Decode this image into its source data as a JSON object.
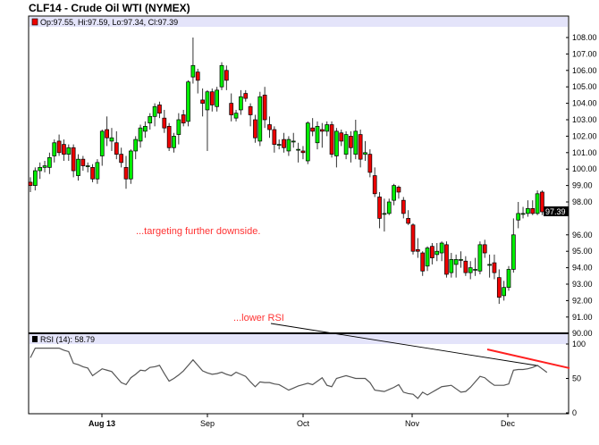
{
  "title": "CLF14 - Crude Oil WTI (NYMEX)",
  "price_info": "Op:97.55, Hi:97.59, Lo:97.34, Cl:97.39",
  "rsi_info": "RSI (14): 58.79",
  "last_price_label": "97.39",
  "annotations": {
    "price": "...targeting further downside.",
    "rsi": "...lower RSI"
  },
  "colors": {
    "up": "#00ee00",
    "down": "#ee0000",
    "info_bar": "#e4e4fa",
    "annotation": "#ff3333",
    "rsi_line": "#555555"
  },
  "chart_data": [
    {
      "type": "candlestick",
      "title": "CLF14 - Crude Oil WTI (NYMEX)",
      "ylim": [
        90,
        108.5
      ],
      "y_ticks": [
        "108.00",
        "107.00",
        "106.00",
        "105.00",
        "104.00",
        "103.00",
        "102.00",
        "101.00",
        "100.00",
        "99.00",
        "98.00",
        "96.00",
        "95.00",
        "94.00",
        "93.00",
        "92.00",
        "91.00",
        "90.00"
      ],
      "x_ticks": [
        "Aug 13",
        "Sep",
        "Oct",
        "Nov",
        "Dec"
      ],
      "grid": false,
      "ohlc": [
        [
          99.2,
          99.5,
          98.6,
          99.0
        ],
        [
          99.0,
          100.1,
          98.7,
          99.9
        ],
        [
          99.9,
          100.4,
          99.4,
          100.1
        ],
        [
          100.1,
          100.5,
          99.8,
          100.2
        ],
        [
          100.1,
          101.0,
          99.7,
          100.7
        ],
        [
          100.8,
          101.8,
          100.4,
          101.6
        ],
        [
          101.7,
          102.1,
          100.8,
          101.0
        ],
        [
          101.5,
          101.8,
          100.5,
          100.9
        ],
        [
          100.9,
          101.5,
          100.5,
          101.3
        ],
        [
          101.3,
          101.5,
          99.5,
          99.9
        ],
        [
          99.6,
          100.9,
          99.3,
          100.6
        ],
        [
          100.6,
          100.8,
          99.9,
          100.2
        ],
        [
          100.2,
          100.4,
          99.8,
          100.2
        ],
        [
          100.1,
          100.3,
          99.2,
          99.4
        ],
        [
          99.4,
          100.6,
          99.1,
          100.4
        ],
        [
          100.8,
          102.4,
          100.2,
          102.3
        ],
        [
          102.4,
          103.2,
          101.4,
          101.9
        ],
        [
          101.7,
          102.5,
          101.1,
          101.9
        ],
        [
          101.6,
          102.3,
          100.6,
          100.9
        ],
        [
          100.9,
          101.3,
          100.1,
          100.4
        ],
        [
          100.1,
          100.8,
          98.8,
          99.4
        ],
        [
          99.4,
          101.2,
          99.1,
          101.1
        ],
        [
          101.1,
          102.0,
          100.6,
          101.8
        ],
        [
          101.7,
          102.7,
          101.3,
          102.5
        ],
        [
          102.3,
          102.9,
          101.9,
          102.6
        ],
        [
          102.8,
          103.4,
          102.4,
          103.2
        ],
        [
          103.2,
          104.0,
          102.6,
          103.8
        ],
        [
          103.9,
          104.1,
          103.1,
          103.4
        ],
        [
          103.1,
          103.6,
          102.2,
          102.5
        ],
        [
          102.6,
          102.8,
          101.1,
          101.3
        ],
        [
          101.3,
          102.2,
          101.0,
          102.0
        ],
        [
          102.1,
          103.4,
          101.5,
          103.0
        ],
        [
          103.3,
          103.6,
          102.6,
          102.8
        ],
        [
          102.9,
          105.4,
          102.6,
          105.3
        ],
        [
          105.6,
          108.0,
          105.2,
          106.3
        ],
        [
          105.9,
          106.1,
          104.6,
          105.4
        ],
        [
          104.2,
          104.9,
          103.2,
          104.0
        ],
        [
          103.6,
          104.8,
          101.1,
          104.7
        ],
        [
          104.7,
          104.9,
          103.5,
          103.9
        ],
        [
          103.8,
          105.0,
          103.5,
          104.8
        ],
        [
          105.0,
          106.5,
          104.8,
          106.3
        ],
        [
          106.0,
          106.3,
          104.8,
          105.4
        ],
        [
          104.0,
          104.6,
          102.9,
          103.3
        ],
        [
          103.1,
          103.6,
          102.9,
          103.4
        ],
        [
          103.6,
          104.8,
          103.3,
          104.4
        ],
        [
          104.6,
          104.8,
          104.1,
          104.3
        ],
        [
          103.8,
          104.0,
          102.6,
          103.3
        ],
        [
          103.0,
          103.3,
          101.6,
          101.9
        ],
        [
          101.7,
          104.7,
          101.4,
          104.4
        ],
        [
          104.5,
          105.0,
          102.5,
          103.0
        ],
        [
          102.7,
          103.2,
          101.9,
          102.4
        ],
        [
          102.4,
          102.6,
          101.0,
          101.5
        ],
        [
          101.5,
          101.8,
          101.2,
          101.5
        ],
        [
          101.8,
          102.2,
          101.0,
          101.3
        ],
        [
          101.1,
          102.0,
          100.8,
          101.8
        ],
        [
          101.7,
          102.2,
          101.3,
          101.7
        ],
        [
          101.2,
          101.6,
          100.4,
          101.2
        ],
        [
          101.1,
          101.4,
          100.6,
          101.0
        ],
        [
          100.5,
          102.9,
          100.3,
          102.8
        ],
        [
          102.5,
          103.1,
          102.0,
          102.3
        ],
        [
          101.6,
          102.9,
          101.2,
          102.6
        ],
        [
          102.4,
          102.8,
          101.3,
          102.3
        ],
        [
          102.3,
          102.9,
          102.0,
          102.7
        ],
        [
          102.7,
          102.9,
          100.7,
          100.9
        ],
        [
          100.8,
          102.5,
          100.1,
          102.3
        ],
        [
          102.2,
          102.4,
          101.4,
          101.7
        ],
        [
          100.9,
          102.3,
          100.6,
          102.1
        ],
        [
          102.0,
          102.3,
          100.4,
          101.3
        ],
        [
          100.9,
          103.0,
          100.6,
          102.3
        ],
        [
          102.1,
          102.4,
          100.1,
          100.6
        ],
        [
          100.9,
          101.7,
          100.5,
          101.0
        ],
        [
          100.9,
          101.2,
          99.5,
          99.8
        ],
        [
          99.6,
          100.1,
          98.3,
          98.5
        ],
        [
          98.3,
          98.6,
          96.4,
          97.0
        ],
        [
          97.3,
          98.2,
          96.2,
          97.3
        ],
        [
          97.3,
          98.2,
          97.2,
          98.0
        ],
        [
          98.1,
          99.1,
          97.8,
          99.0
        ],
        [
          98.9,
          99.0,
          98.2,
          98.6
        ],
        [
          98.1,
          98.3,
          97.0,
          97.3
        ],
        [
          97.0,
          97.5,
          96.6,
          96.7
        ],
        [
          96.6,
          96.7,
          94.8,
          95.0
        ],
        [
          95.1,
          95.8,
          94.6,
          95.0
        ],
        [
          94.9,
          95.0,
          93.5,
          93.8
        ],
        [
          94.1,
          95.3,
          93.8,
          95.2
        ],
        [
          95.3,
          95.5,
          94.2,
          94.6
        ],
        [
          94.8,
          95.5,
          94.4,
          95.0
        ],
        [
          94.9,
          95.6,
          94.4,
          95.5
        ],
        [
          95.4,
          95.6,
          93.4,
          93.6
        ],
        [
          93.7,
          94.9,
          93.4,
          94.5
        ],
        [
          94.2,
          94.8,
          93.4,
          94.5
        ],
        [
          94.5,
          95.0,
          94.0,
          94.5
        ],
        [
          94.4,
          94.7,
          93.5,
          93.7
        ],
        [
          93.7,
          94.4,
          93.3,
          94.0
        ],
        [
          93.9,
          94.6,
          93.5,
          93.9
        ],
        [
          93.8,
          95.6,
          93.6,
          95.4
        ],
        [
          95.4,
          95.7,
          94.6,
          94.9
        ],
        [
          94.2,
          94.8,
          93.4,
          94.2
        ],
        [
          94.3,
          94.8,
          93.3,
          93.7
        ],
        [
          93.4,
          93.9,
          91.8,
          92.2
        ],
        [
          92.3,
          93.2,
          92.0,
          92.8
        ],
        [
          92.8,
          94.1,
          92.6,
          93.9
        ],
        [
          93.9,
          97.0,
          93.7,
          96.0
        ],
        [
          96.9,
          98.0,
          96.4,
          97.3
        ],
        [
          97.3,
          97.7,
          97.0,
          97.3
        ],
        [
          97.3,
          98.1,
          97.1,
          97.6
        ],
        [
          97.6,
          98.1,
          97.2,
          97.3
        ],
        [
          97.3,
          98.7,
          97.2,
          98.5
        ],
        [
          98.6,
          98.7,
          97.2,
          97.4
        ],
        [
          97.55,
          97.59,
          97.34,
          97.39
        ]
      ]
    },
    {
      "type": "line",
      "title": "RSI (14): 58.79",
      "ylim": [
        0,
        100
      ],
      "y_ticks": [
        "100",
        "50",
        "0"
      ],
      "values": [
        80,
        94,
        94,
        94,
        94,
        94,
        94,
        91,
        89,
        72,
        70,
        67,
        65,
        54,
        59,
        64,
        62,
        60,
        52,
        44,
        41,
        51,
        56,
        62,
        61,
        66,
        67,
        69,
        57,
        46,
        50,
        55,
        61,
        69,
        77,
        69,
        61,
        58,
        56,
        57,
        59,
        56,
        54,
        59,
        56,
        53,
        45,
        38,
        45,
        44,
        44,
        42,
        41,
        37,
        33,
        36,
        39,
        41,
        43,
        41,
        46,
        51,
        40,
        38,
        50,
        52,
        54,
        52,
        50,
        50,
        50,
        44,
        33,
        32,
        31,
        34,
        37,
        41,
        30,
        28,
        27,
        21,
        30,
        26,
        30,
        34,
        38,
        39,
        40,
        35,
        30,
        31,
        37,
        45,
        53,
        51,
        45,
        40,
        40,
        40,
        42,
        62,
        63,
        63,
        64,
        66,
        69,
        64,
        58.79
      ]
    }
  ]
}
